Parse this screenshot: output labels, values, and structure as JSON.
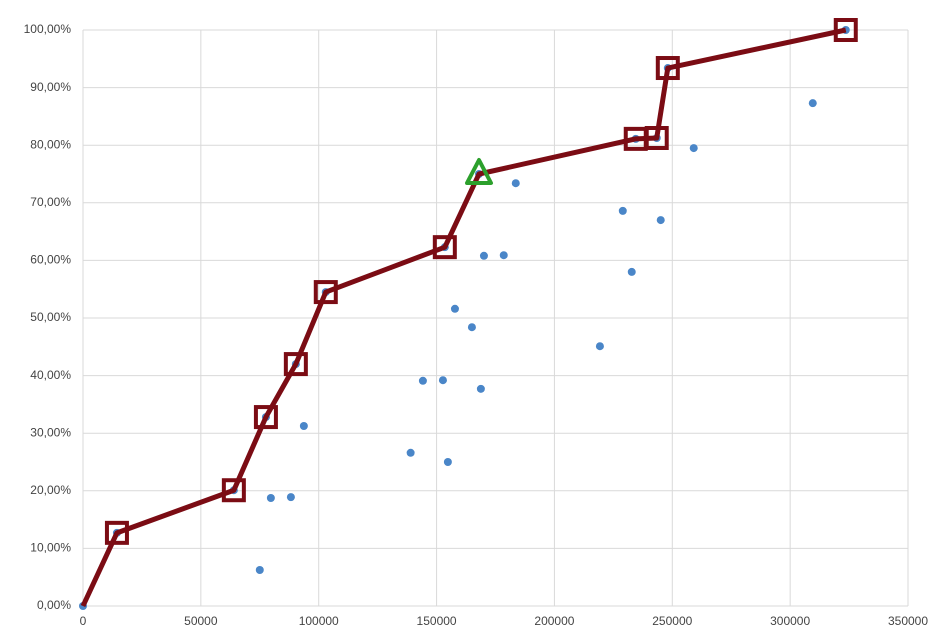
{
  "chart_data": {
    "type": "scatter",
    "xlim": [
      0,
      350000
    ],
    "xticks": [
      0,
      50000,
      100000,
      150000,
      200000,
      250000,
      300000,
      350000
    ],
    "ylim": [
      0,
      100
    ],
    "yticks": [
      {
        "value": 0,
        "label": "0,00%"
      },
      {
        "value": 10,
        "label": "10,00%"
      },
      {
        "value": 20,
        "label": "20,00%"
      },
      {
        "value": 30,
        "label": "30,00%"
      },
      {
        "value": 40,
        "label": "40,00%"
      },
      {
        "value": 50,
        "label": "50,00%"
      },
      {
        "value": 60,
        "label": "60,00%"
      },
      {
        "value": 70,
        "label": "70,00%"
      },
      {
        "value": 80,
        "label": "80,00%"
      },
      {
        "value": 90,
        "label": "90,00%"
      },
      {
        "value": 100,
        "label": "100,00%"
      }
    ],
    "grid": true,
    "series": [
      {
        "color": "#4a86c8",
        "marker": "circle",
        "x": [
          0,
          14400,
          64000,
          75000,
          77600,
          79700,
          88200,
          90300,
          93700,
          103000,
          139000,
          144200,
          152700,
          153500,
          154800,
          157800,
          165000,
          168000,
          168800,
          170100,
          178500,
          183600,
          219300,
          229000,
          232800,
          234500,
          243400,
          245100,
          248100,
          259100,
          309600,
          323600
        ],
        "values": [
          0,
          12.7,
          20.1,
          6.25,
          32.8,
          18.75,
          18.9,
          42.0,
          31.25,
          54.5,
          26.6,
          39.1,
          39.2,
          62.3,
          25.0,
          51.6,
          48.4,
          75.0,
          37.7,
          60.8,
          60.9,
          73.4,
          45.1,
          68.6,
          58.0,
          81.1,
          81.25,
          67.0,
          93.4,
          79.5,
          87.3,
          100
        ]
      },
      {
        "color": "#7b0c14",
        "marker": "square",
        "x": [
          0,
          14400,
          64000,
          77600,
          90300,
          103000,
          153500,
          168000,
          234500,
          243400,
          248100,
          323600
        ],
        "values": [
          0,
          12.7,
          20.1,
          32.8,
          42.0,
          54.5,
          62.3,
          75.0,
          81.1,
          81.25,
          93.4,
          100
        ]
      }
    ],
    "highlight": {
      "x": 168000,
      "y": 75.0,
      "color": "#2ca02c",
      "marker": "triangle"
    }
  }
}
